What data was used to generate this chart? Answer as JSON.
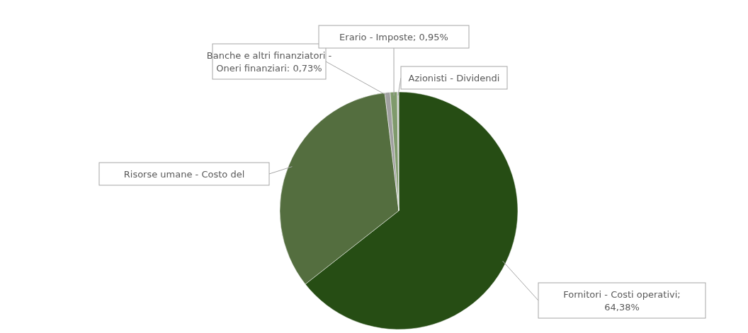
{
  "chart_data": {
    "type": "pie",
    "categories": [
      "Fornitori - Costi operativi",
      "Risorse umane - Costo del",
      "Banche e altri finanziatori - Oneri finanziari",
      "Erario - Imposte",
      "Azionisti - Dividendi"
    ],
    "values": [
      64.38,
      33.74,
      0.73,
      0.95,
      0.2
    ],
    "colors": [
      "#264d14",
      "#546e3f",
      "#a0a0a0",
      "#7f9a6c",
      "#c8c8c8"
    ],
    "value_labels": [
      "; 64,38%",
      null,
      ": 0,73%",
      "; 0,95%",
      null
    ]
  }
}
